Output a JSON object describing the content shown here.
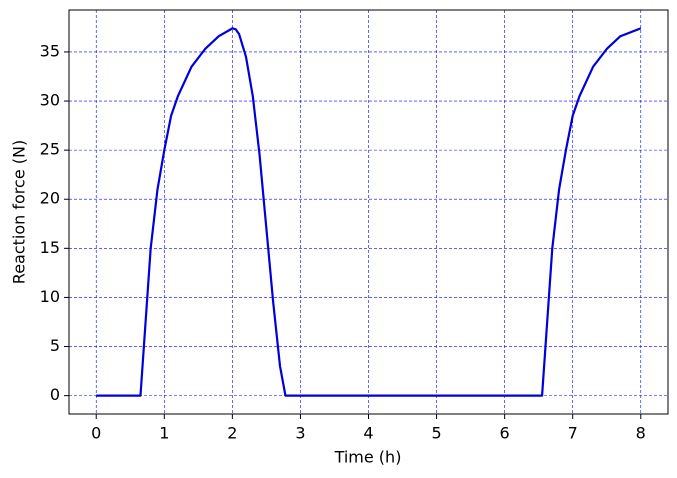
{
  "chart_data": {
    "type": "line",
    "x_label": "Time (h)",
    "y_label": "Reaction force (N)",
    "x": [
      0,
      0.65,
      0.7,
      0.8,
      0.9,
      1.0,
      1.1,
      1.2,
      1.4,
      1.6,
      1.8,
      2.0,
      2.05,
      2.1,
      2.2,
      2.3,
      2.4,
      2.5,
      2.6,
      2.7,
      2.78,
      3,
      4,
      5,
      6,
      6.55,
      6.6,
      6.7,
      6.8,
      6.9,
      7.0,
      7.1,
      7.3,
      7.5,
      7.7,
      8.0
    ],
    "series": [
      {
        "name": "Reaction force",
        "color": "#0000dd",
        "values": [
          0,
          0,
          5,
          15,
          21,
          25,
          28.5,
          30.5,
          33.5,
          35.3,
          36.6,
          37.4,
          37.3,
          36.8,
          34.5,
          30.5,
          24.5,
          17,
          9.5,
          3,
          0,
          0,
          0,
          0,
          0,
          0,
          5,
          15,
          21,
          25,
          28.5,
          30.5,
          33.5,
          35.3,
          36.6,
          37.4
        ]
      }
    ],
    "xlim": [
      -0.4,
      8.4
    ],
    "ylim": [
      -1.87,
      39.27
    ],
    "xticks": [
      0,
      1,
      2,
      3,
      4,
      5,
      6,
      7,
      8
    ],
    "yticks": [
      0,
      5,
      10,
      15,
      20,
      25,
      30,
      35
    ],
    "grid": true,
    "grid_color": "#0000ff"
  }
}
